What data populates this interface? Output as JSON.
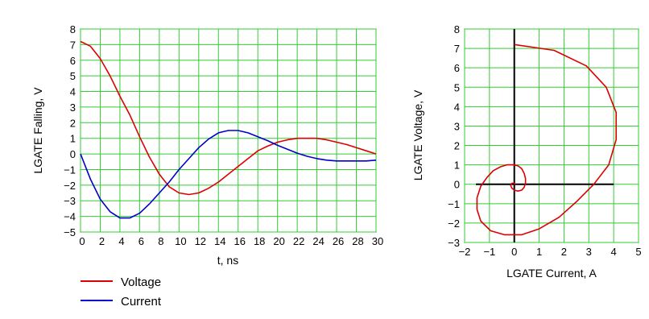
{
  "chart_data": [
    {
      "type": "line",
      "title": "",
      "xlabel": "t, ns",
      "ylabel": "LGATE Falling, V",
      "xlim": [
        0,
        30
      ],
      "ylim": [
        -5,
        8
      ],
      "x_ticks": [
        0,
        2,
        4,
        6,
        8,
        10,
        12,
        14,
        16,
        18,
        20,
        22,
        24,
        26,
        28,
        30
      ],
      "y_ticks": [
        -5,
        -4,
        -3,
        -2,
        -1,
        0,
        1,
        2,
        3,
        4,
        5,
        6,
        7,
        8
      ],
      "grid": true,
      "grid_color": "#33cc33",
      "legend_position": "bottom-left, below plot",
      "series": [
        {
          "name": "Voltage",
          "color": "#dd0000",
          "x": [
            0,
            1,
            2,
            3,
            4,
            5,
            6,
            7,
            8,
            9,
            10,
            11,
            12,
            13,
            14,
            15,
            16,
            17,
            18,
            19,
            20,
            21,
            22,
            23,
            24,
            25,
            26,
            27,
            28,
            29,
            30
          ],
          "y": [
            7.2,
            6.9,
            6.1,
            5.0,
            3.7,
            2.5,
            1.1,
            -0.2,
            -1.3,
            -2.1,
            -2.5,
            -2.6,
            -2.5,
            -2.2,
            -1.8,
            -1.3,
            -0.8,
            -0.3,
            0.2,
            0.5,
            0.75,
            0.9,
            1.0,
            1.0,
            1.0,
            0.9,
            0.75,
            0.6,
            0.4,
            0.2,
            0.0
          ]
        },
        {
          "name": "Current",
          "color": "#0000cc",
          "x": [
            0,
            1,
            2,
            3,
            4,
            5,
            6,
            7,
            8,
            9,
            10,
            11,
            12,
            13,
            14,
            15,
            16,
            17,
            18,
            19,
            20,
            21,
            22,
            23,
            24,
            25,
            26,
            27,
            28,
            29,
            30
          ],
          "y": [
            0.0,
            -1.6,
            -2.9,
            -3.7,
            -4.1,
            -4.1,
            -3.8,
            -3.2,
            -2.5,
            -1.8,
            -1.0,
            -0.3,
            0.4,
            0.95,
            1.35,
            1.5,
            1.5,
            1.35,
            1.1,
            0.85,
            0.55,
            0.3,
            0.05,
            -0.15,
            -0.3,
            -0.4,
            -0.45,
            -0.45,
            -0.45,
            -0.45,
            -0.4
          ]
        }
      ]
    },
    {
      "type": "line",
      "title": "",
      "xlabel": "LGATE Current, A",
      "ylabel": "LGATE Voltage, V",
      "xlim": [
        -2,
        5
      ],
      "ylim": [
        -3,
        8
      ],
      "x_ticks": [
        -2,
        -1,
        0,
        1,
        2,
        3,
        4,
        5
      ],
      "y_ticks": [
        -3,
        -2,
        -1,
        0,
        1,
        2,
        3,
        4,
        5,
        6,
        7,
        8
      ],
      "grid": true,
      "grid_color": "#33cc33",
      "axis_color": "#000000",
      "series": [
        {
          "name": "",
          "color": "#dd0000",
          "x": [
            0,
            1.6,
            2.9,
            3.7,
            4.1,
            4.1,
            3.8,
            3.2,
            2.5,
            1.8,
            1.0,
            0.3,
            -0.4,
            -0.95,
            -1.35,
            -1.5,
            -1.5,
            -1.35,
            -1.1,
            -0.85,
            -0.55,
            -0.3,
            -0.05,
            0.15,
            0.3,
            0.4,
            0.45,
            0.45,
            0.4,
            0.3,
            0.15,
            0.0,
            -0.1,
            -0.15,
            -0.1,
            0.0,
            0.05
          ],
          "y": [
            7.2,
            6.9,
            6.1,
            5.0,
            3.7,
            2.3,
            1.0,
            0.0,
            -0.9,
            -1.7,
            -2.3,
            -2.6,
            -2.6,
            -2.4,
            -1.9,
            -1.3,
            -0.7,
            -0.1,
            0.35,
            0.7,
            0.9,
            1.0,
            1.0,
            0.95,
            0.8,
            0.55,
            0.3,
            0.05,
            -0.15,
            -0.3,
            -0.35,
            -0.3,
            -0.2,
            -0.05,
            0.05,
            0.05,
            0.0
          ]
        }
      ]
    }
  ]
}
